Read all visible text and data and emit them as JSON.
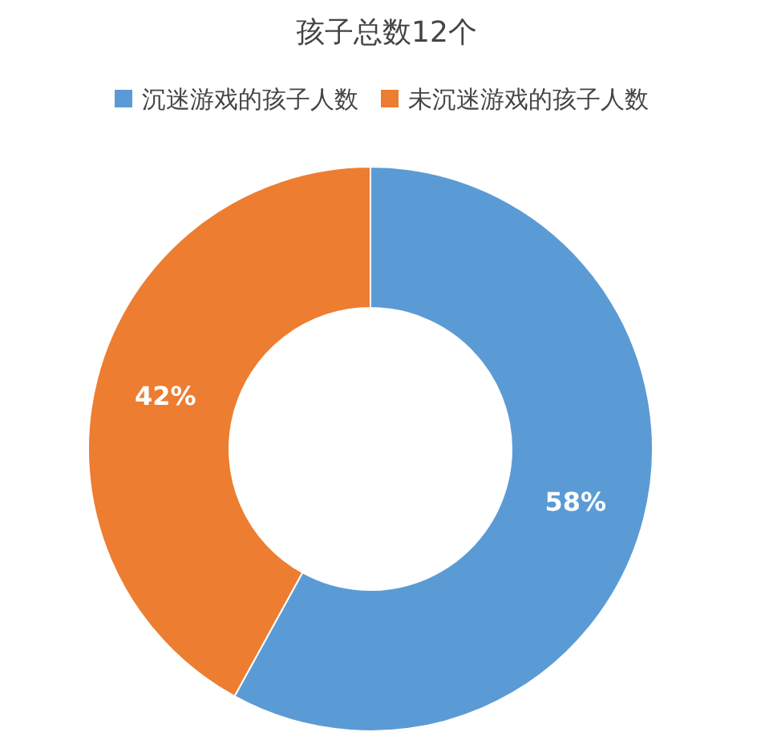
{
  "chart_data": {
    "type": "donut",
    "title": "孩子总数12个",
    "categories": [
      "沉迷游戏的孩子人数",
      "未沉迷游戏的孩子人数"
    ],
    "values": [
      58,
      42
    ],
    "colors": [
      "#5b9bd5",
      "#ed7d31"
    ],
    "value_labels": [
      "58%",
      "42%"
    ],
    "legend": "top"
  }
}
